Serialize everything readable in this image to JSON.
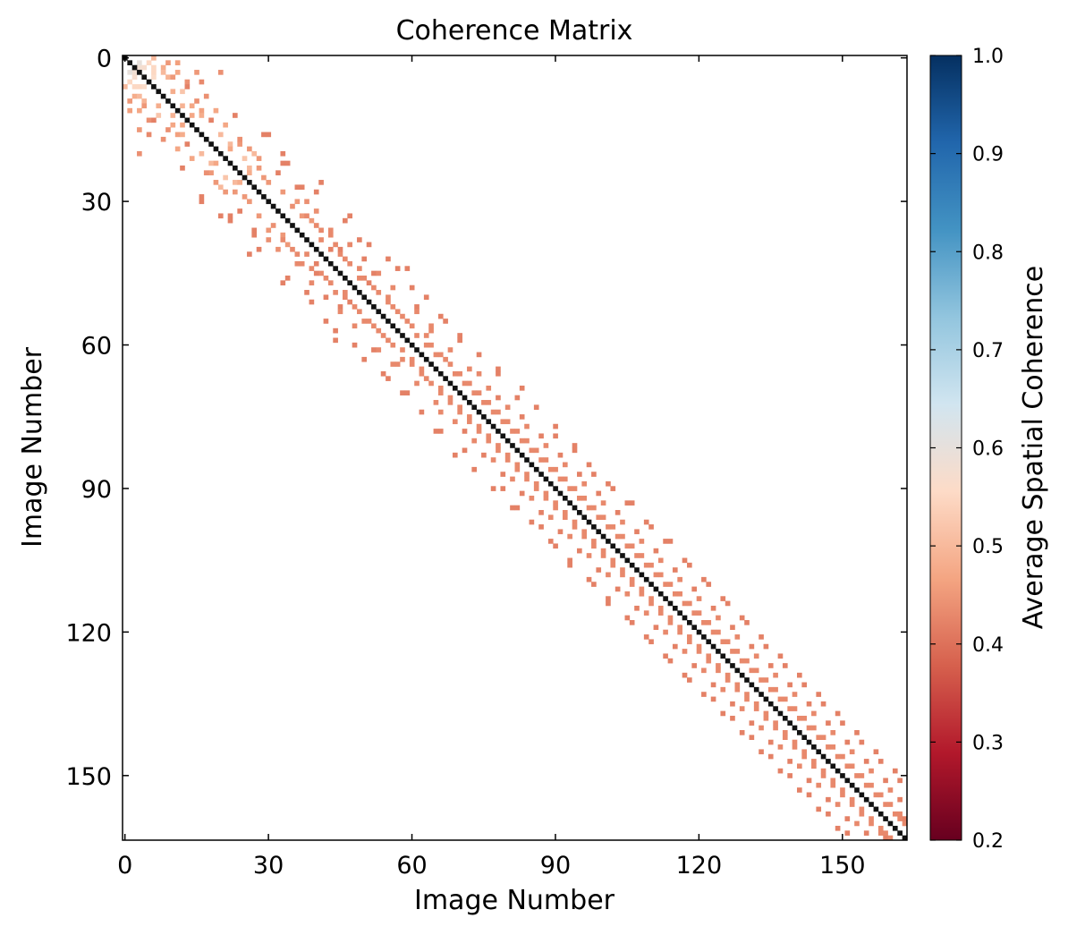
{
  "chart_data": {
    "type": "heatmap",
    "title": "Coherence Matrix",
    "xlabel": "Image Number",
    "ylabel": "Image Number",
    "n": 164,
    "xlim": [
      0,
      163
    ],
    "ylim": [
      163,
      0
    ],
    "x_ticks": [
      0,
      30,
      60,
      90,
      120,
      150
    ],
    "y_ticks": [
      0,
      30,
      60,
      90,
      120,
      150
    ],
    "diagonal_value": 1.0,
    "diagonal_color": "#111111",
    "threshold": 0.7,
    "colorbar": {
      "label": "Average Spatial Coherence",
      "range": [
        0.2,
        1.0
      ],
      "ticks": [
        "0.2",
        "0.3",
        "0.4",
        "0.5",
        "0.6",
        "0.7",
        "0.8",
        "0.9",
        "1.0"
      ],
      "colormap": "RdBu",
      "colors": [
        "#67001f",
        "#b2182b",
        "#d6604d",
        "#f4a582",
        "#fddbc7",
        "#d1e5f0",
        "#92c5de",
        "#4393c3",
        "#2166ac",
        "#053061"
      ]
    },
    "pairs": [
      [
        2,
        3,
        0.58
      ],
      [
        3,
        1,
        0.6
      ],
      [
        4,
        2,
        0.57
      ],
      [
        5,
        1,
        0.55
      ],
      [
        6,
        3,
        0.55
      ],
      [
        4,
        6,
        0.56
      ],
      [
        2,
        6,
        0.55
      ],
      [
        6,
        0,
        0.5
      ],
      [
        8,
        2,
        0.48
      ],
      [
        9,
        4,
        0.49
      ],
      [
        3,
        8,
        0.5
      ],
      [
        4,
        10,
        0.45
      ],
      [
        11,
        3,
        0.47
      ],
      [
        7,
        12,
        0.52
      ],
      [
        10,
        12,
        0.49
      ],
      [
        12,
        14,
        0.47
      ],
      [
        11,
        16,
        0.46
      ],
      [
        13,
        5,
        0.44
      ],
      [
        14,
        10,
        0.47
      ],
      [
        15,
        3,
        0.45
      ],
      [
        16,
        12,
        0.48
      ],
      [
        17,
        8,
        0.44
      ],
      [
        19,
        11,
        0.47
      ],
      [
        20,
        16,
        0.5
      ],
      [
        21,
        14,
        0.47
      ],
      [
        18,
        22,
        0.5
      ],
      [
        22,
        19,
        0.47
      ],
      [
        24,
        18,
        0.45
      ],
      [
        23,
        26,
        0.5
      ],
      [
        25,
        21,
        0.52
      ],
      [
        26,
        24,
        0.48
      ],
      [
        27,
        20,
        0.5
      ],
      [
        28,
        23,
        0.45
      ],
      [
        29,
        25,
        0.45
      ],
      [
        12,
        23,
        0.42
      ],
      [
        10,
        7,
        0.48
      ],
      [
        1,
        11,
        0.46
      ],
      [
        9,
        1,
        0.45
      ],
      [
        6,
        13,
        0.42
      ],
      [
        15,
        9,
        0.44
      ],
      [
        3,
        20,
        0.44
      ],
      [
        5,
        16,
        0.43
      ],
      [
        8,
        17,
        0.44
      ],
      [
        13,
        18,
        0.42
      ],
      [
        17,
        24,
        0.44
      ],
      [
        19,
        26,
        0.45
      ],
      [
        21,
        28,
        0.45
      ],
      [
        24,
        32,
        0.42
      ],
      [
        26,
        30,
        0.45
      ],
      [
        28,
        33,
        0.45
      ],
      [
        16,
        29,
        0.42
      ],
      [
        22,
        33,
        0.42
      ],
      [
        27,
        36,
        0.42
      ],
      [
        30,
        36,
        0.45
      ],
      [
        31,
        35,
        0.44
      ],
      [
        32,
        40,
        0.44
      ],
      [
        33,
        37,
        0.45
      ],
      [
        34,
        39,
        0.45
      ],
      [
        35,
        31,
        0.44
      ],
      [
        36,
        41,
        0.43
      ],
      [
        37,
        43,
        0.43
      ],
      [
        38,
        33,
        0.43
      ],
      [
        39,
        44,
        0.43
      ],
      [
        40,
        35,
        0.43
      ],
      [
        41,
        38,
        0.43
      ],
      [
        42,
        46,
        0.43
      ],
      [
        43,
        40,
        0.42
      ],
      [
        44,
        49,
        0.43
      ],
      [
        45,
        41,
        0.43
      ],
      [
        46,
        50,
        0.43
      ],
      [
        47,
        43,
        0.43
      ],
      [
        48,
        52,
        0.43
      ],
      [
        49,
        46,
        0.43
      ],
      [
        50,
        55,
        0.43
      ],
      [
        51,
        47,
        0.42
      ],
      [
        52,
        56,
        0.43
      ],
      [
        53,
        49,
        0.43
      ],
      [
        54,
        58,
        0.43
      ],
      [
        55,
        51,
        0.43
      ],
      [
        56,
        60,
        0.43
      ],
      [
        57,
        53,
        0.43
      ],
      [
        58,
        63,
        0.43
      ],
      [
        59,
        55,
        0.43
      ],
      [
        60,
        64,
        0.43
      ],
      [
        61,
        58,
        0.43
      ],
      [
        62,
        66,
        0.43
      ],
      [
        63,
        60,
        0.43
      ],
      [
        64,
        68,
        0.43
      ],
      [
        65,
        62,
        0.43
      ],
      [
        66,
        70,
        0.43
      ],
      [
        67,
        63,
        0.43
      ],
      [
        68,
        72,
        0.43
      ],
      [
        69,
        66,
        0.43
      ],
      [
        70,
        74,
        0.43
      ],
      [
        71,
        68,
        0.43
      ],
      [
        72,
        76,
        0.43
      ],
      [
        73,
        70,
        0.43
      ],
      [
        74,
        78,
        0.43
      ],
      [
        75,
        72,
        0.43
      ],
      [
        76,
        80,
        0.43
      ],
      [
        77,
        74,
        0.43
      ],
      [
        78,
        82,
        0.43
      ],
      [
        79,
        76,
        0.43
      ],
      [
        80,
        84,
        0.43
      ],
      [
        81,
        78,
        0.43
      ],
      [
        82,
        86,
        0.43
      ],
      [
        83,
        80,
        0.43
      ],
      [
        84,
        88,
        0.43
      ],
      [
        85,
        82,
        0.43
      ],
      [
        86,
        90,
        0.43
      ],
      [
        87,
        84,
        0.43
      ],
      [
        88,
        92,
        0.43
      ],
      [
        89,
        86,
        0.43
      ],
      [
        90,
        94,
        0.43
      ],
      [
        91,
        88,
        0.43
      ],
      [
        92,
        96,
        0.43
      ],
      [
        93,
        90,
        0.43
      ],
      [
        94,
        98,
        0.43
      ],
      [
        95,
        92,
        0.43
      ],
      [
        96,
        100,
        0.43
      ],
      [
        97,
        94,
        0.43
      ],
      [
        98,
        102,
        0.43
      ],
      [
        99,
        96,
        0.43
      ],
      [
        100,
        104,
        0.43
      ],
      [
        101,
        98,
        0.43
      ],
      [
        102,
        106,
        0.43
      ],
      [
        103,
        100,
        0.43
      ],
      [
        104,
        108,
        0.43
      ],
      [
        105,
        102,
        0.43
      ],
      [
        106,
        110,
        0.43
      ],
      [
        107,
        104,
        0.43
      ],
      [
        108,
        112,
        0.43
      ],
      [
        109,
        106,
        0.43
      ],
      [
        110,
        114,
        0.43
      ],
      [
        111,
        108,
        0.43
      ],
      [
        112,
        116,
        0.43
      ],
      [
        113,
        110,
        0.43
      ],
      [
        114,
        118,
        0.43
      ],
      [
        115,
        112,
        0.43
      ],
      [
        116,
        120,
        0.43
      ],
      [
        117,
        114,
        0.43
      ],
      [
        118,
        122,
        0.43
      ],
      [
        119,
        116,
        0.43
      ],
      [
        120,
        124,
        0.43
      ],
      [
        121,
        118,
        0.43
      ],
      [
        122,
        126,
        0.43
      ],
      [
        123,
        120,
        0.43
      ],
      [
        124,
        128,
        0.43
      ],
      [
        125,
        122,
        0.43
      ],
      [
        126,
        130,
        0.43
      ],
      [
        127,
        124,
        0.43
      ],
      [
        128,
        132,
        0.43
      ],
      [
        129,
        126,
        0.43
      ],
      [
        130,
        134,
        0.43
      ],
      [
        131,
        128,
        0.43
      ],
      [
        132,
        136,
        0.43
      ],
      [
        133,
        130,
        0.43
      ],
      [
        134,
        138,
        0.43
      ],
      [
        135,
        132,
        0.43
      ],
      [
        136,
        140,
        0.43
      ],
      [
        137,
        134,
        0.43
      ],
      [
        138,
        142,
        0.43
      ],
      [
        139,
        136,
        0.43
      ],
      [
        140,
        144,
        0.43
      ],
      [
        141,
        138,
        0.43
      ],
      [
        142,
        146,
        0.43
      ],
      [
        143,
        140,
        0.43
      ],
      [
        144,
        148,
        0.43
      ],
      [
        145,
        142,
        0.43
      ],
      [
        146,
        150,
        0.43
      ],
      [
        147,
        144,
        0.43
      ],
      [
        148,
        152,
        0.43
      ],
      [
        149,
        146,
        0.43
      ],
      [
        150,
        154,
        0.43
      ],
      [
        151,
        148,
        0.43
      ],
      [
        152,
        156,
        0.43
      ],
      [
        153,
        150,
        0.43
      ],
      [
        154,
        158,
        0.43
      ],
      [
        155,
        152,
        0.43
      ],
      [
        156,
        160,
        0.43
      ],
      [
        157,
        154,
        0.43
      ],
      [
        158,
        162,
        0.43
      ],
      [
        159,
        156,
        0.43
      ],
      [
        160,
        163,
        0.43
      ],
      [
        161,
        158,
        0.43
      ],
      [
        162,
        159,
        0.43
      ],
      [
        163,
        160,
        0.43
      ],
      [
        38,
        30,
        0.44
      ],
      [
        40,
        45,
        0.42
      ],
      [
        43,
        36,
        0.43
      ],
      [
        47,
        39,
        0.43
      ],
      [
        50,
        42,
        0.42
      ],
      [
        45,
        52,
        0.42
      ],
      [
        53,
        45,
        0.43
      ],
      [
        56,
        48,
        0.43
      ],
      [
        52,
        61,
        0.42
      ],
      [
        57,
        64,
        0.43
      ],
      [
        61,
        53,
        0.43
      ],
      [
        64,
        56,
        0.43
      ],
      [
        68,
        61,
        0.43
      ],
      [
        66,
        74,
        0.43
      ],
      [
        72,
        65,
        0.43
      ],
      [
        71,
        78,
        0.42
      ],
      [
        76,
        69,
        0.43
      ],
      [
        75,
        83,
        0.42
      ],
      [
        80,
        73,
        0.43
      ],
      [
        79,
        87,
        0.42
      ],
      [
        84,
        77,
        0.43
      ],
      [
        83,
        91,
        0.42
      ],
      [
        88,
        81,
        0.43
      ],
      [
        87,
        95,
        0.42
      ],
      [
        92,
        85,
        0.43
      ],
      [
        91,
        99,
        0.42
      ],
      [
        96,
        89,
        0.43
      ],
      [
        95,
        103,
        0.42
      ],
      [
        100,
        93,
        0.43
      ],
      [
        99,
        107,
        0.42
      ],
      [
        104,
        97,
        0.43
      ],
      [
        103,
        111,
        0.42
      ],
      [
        108,
        101,
        0.43
      ],
      [
        107,
        115,
        0.42
      ],
      [
        112,
        105,
        0.43
      ],
      [
        111,
        119,
        0.42
      ],
      [
        116,
        109,
        0.43
      ],
      [
        115,
        123,
        0.42
      ],
      [
        120,
        113,
        0.43
      ],
      [
        119,
        127,
        0.42
      ],
      [
        124,
        117,
        0.43
      ],
      [
        123,
        131,
        0.42
      ],
      [
        128,
        121,
        0.43
      ],
      [
        127,
        135,
        0.42
      ],
      [
        132,
        125,
        0.43
      ],
      [
        131,
        139,
        0.42
      ],
      [
        136,
        129,
        0.43
      ],
      [
        135,
        143,
        0.42
      ],
      [
        140,
        133,
        0.43
      ],
      [
        139,
        147,
        0.42
      ],
      [
        144,
        137,
        0.43
      ],
      [
        143,
        151,
        0.42
      ],
      [
        148,
        141,
        0.43
      ],
      [
        147,
        155,
        0.42
      ],
      [
        152,
        145,
        0.43
      ],
      [
        151,
        159,
        0.42
      ],
      [
        156,
        149,
        0.43
      ],
      [
        155,
        162,
        0.42
      ],
      [
        160,
        153,
        0.43
      ],
      [
        159,
        163,
        0.42
      ],
      [
        30,
        16,
        0.42
      ],
      [
        34,
        22,
        0.42
      ],
      [
        37,
        27,
        0.42
      ],
      [
        41,
        26,
        0.42
      ],
      [
        46,
        34,
        0.42
      ],
      [
        49,
        38,
        0.42
      ],
      [
        55,
        42,
        0.42
      ],
      [
        59,
        44,
        0.42
      ],
      [
        63,
        50,
        0.42
      ],
      [
        67,
        55,
        0.42
      ],
      [
        70,
        59,
        0.42
      ],
      [
        74,
        62,
        0.42
      ],
      [
        78,
        66,
        0.42
      ],
      [
        82,
        71,
        0.42
      ],
      [
        86,
        73,
        0.42
      ],
      [
        90,
        79,
        0.42
      ],
      [
        94,
        82,
        0.42
      ],
      [
        98,
        87,
        0.42
      ],
      [
        102,
        90,
        0.42
      ],
      [
        106,
        93,
        0.42
      ],
      [
        110,
        98,
        0.42
      ],
      [
        114,
        101,
        0.42
      ],
      [
        118,
        106,
        0.42
      ],
      [
        122,
        110,
        0.42
      ],
      [
        126,
        114,
        0.42
      ],
      [
        130,
        118,
        0.42
      ],
      [
        134,
        123,
        0.42
      ],
      [
        138,
        127,
        0.42
      ],
      [
        142,
        131,
        0.42
      ],
      [
        146,
        135,
        0.42
      ],
      [
        150,
        139,
        0.42
      ],
      [
        154,
        143,
        0.42
      ],
      [
        158,
        147,
        0.42
      ],
      [
        162,
        151,
        0.42
      ],
      [
        20,
        33,
        0.42
      ],
      [
        28,
        40,
        0.42
      ],
      [
        33,
        47,
        0.42
      ],
      [
        39,
        51,
        0.42
      ],
      [
        44,
        57,
        0.42
      ],
      [
        48,
        60,
        0.42
      ],
      [
        54,
        66,
        0.42
      ],
      [
        58,
        70,
        0.42
      ],
      [
        62,
        74,
        0.42
      ],
      [
        65,
        78,
        0.42
      ],
      [
        69,
        83,
        0.42
      ],
      [
        73,
        86,
        0.42
      ],
      [
        77,
        90,
        0.42
      ],
      [
        81,
        94,
        0.42
      ],
      [
        85,
        97,
        0.42
      ],
      [
        89,
        101,
        0.42
      ],
      [
        93,
        105,
        0.42
      ],
      [
        97,
        109,
        0.42
      ],
      [
        101,
        113,
        0.42
      ],
      [
        105,
        117,
        0.42
      ],
      [
        109,
        121,
        0.42
      ],
      [
        113,
        125,
        0.42
      ],
      [
        117,
        129,
        0.42
      ],
      [
        121,
        133,
        0.42
      ],
      [
        125,
        137,
        0.42
      ],
      [
        129,
        141,
        0.42
      ],
      [
        133,
        145,
        0.42
      ],
      [
        137,
        149,
        0.42
      ],
      [
        141,
        153,
        0.42
      ],
      [
        145,
        157,
        0.42
      ],
      [
        149,
        161,
        0.42
      ]
    ]
  }
}
